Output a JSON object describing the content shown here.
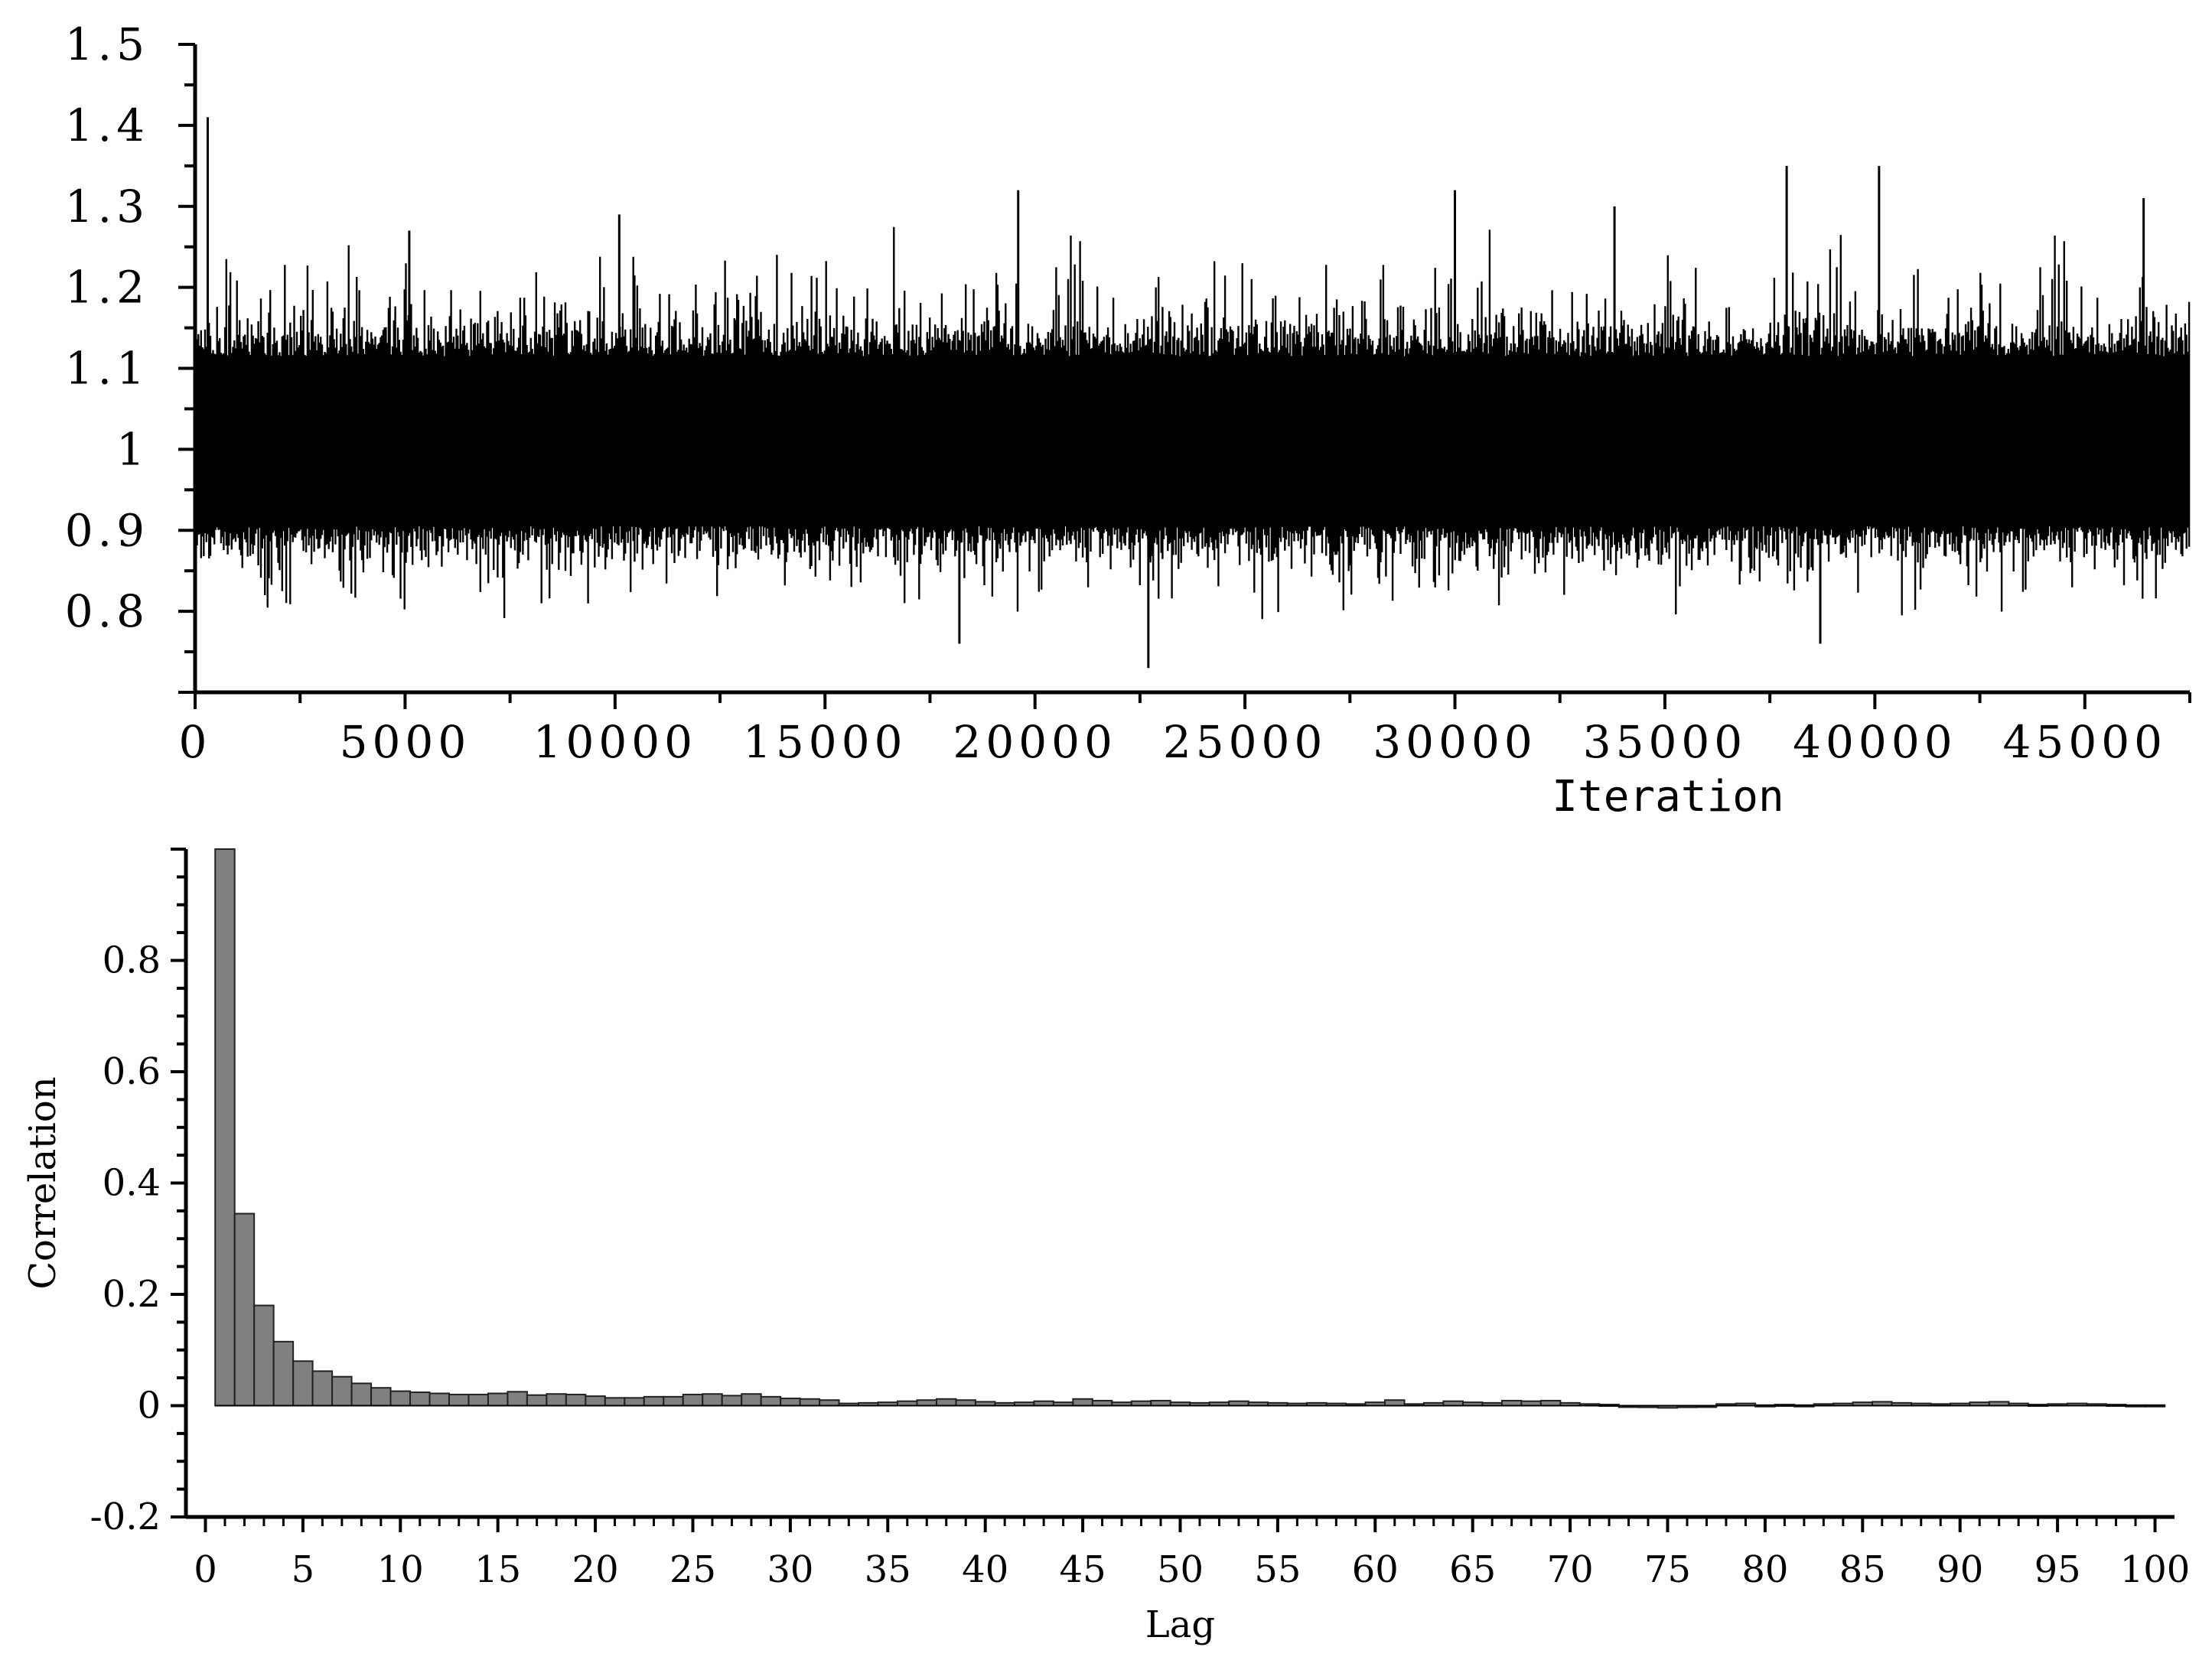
{
  "chart_data": [
    {
      "type": "line",
      "title": "",
      "xlabel": "Iteration",
      "ylabel": "",
      "xlim": [
        0,
        47500
      ],
      "ylim": [
        0.7,
        1.5
      ],
      "x_ticks": [
        "0",
        "5000",
        "10000",
        "15000",
        "20000",
        "25000",
        "30000",
        "35000",
        "40000",
        "45000"
      ],
      "y_ticks": [
        "0.8",
        "0.9",
        "1",
        "1.1",
        "1.2",
        "1.3",
        "1.4",
        "1.5"
      ],
      "grid": false,
      "series": [
        {
          "description_values": "dense MCMC trace, ~47500 iterations centred near 1.0, bulk range 0.88-1.14",
          "mean": 1.01,
          "n_iterations": 47500,
          "notable_points": [
            {
              "x": 300,
              "y": 1.41
            },
            {
              "x": 5100,
              "y": 1.27
            },
            {
              "x": 10100,
              "y": 1.29
            },
            {
              "x": 18200,
              "y": 0.76
            },
            {
              "x": 19600,
              "y": 1.32
            },
            {
              "x": 22700,
              "y": 0.73
            },
            {
              "x": 30000,
              "y": 1.32
            },
            {
              "x": 33800,
              "y": 1.3
            },
            {
              "x": 37900,
              "y": 1.35
            },
            {
              "x": 38700,
              "y": 0.76
            },
            {
              "x": 40100,
              "y": 1.35
            },
            {
              "x": 46400,
              "y": 1.31
            }
          ]
        }
      ]
    },
    {
      "type": "bar",
      "title": "",
      "xlabel": "Lag",
      "ylabel": "Correlation",
      "xlim": [
        -1,
        101
      ],
      "ylim": [
        -0.2,
        1.0
      ],
      "x_ticks": [
        "0",
        "5",
        "10",
        "15",
        "20",
        "25",
        "30",
        "35",
        "40",
        "45",
        "50",
        "55",
        "60",
        "65",
        "70",
        "75",
        "80",
        "85",
        "90",
        "95",
        "100"
      ],
      "y_ticks": [
        "-0.2",
        "0",
        "0.2",
        "0.4",
        "0.6",
        "0.8"
      ],
      "grid": false,
      "categories": [
        1,
        2,
        3,
        4,
        5,
        6,
        7,
        8,
        9,
        10,
        11,
        12,
        13,
        14,
        15,
        16,
        17,
        18,
        19,
        20,
        21,
        22,
        23,
        24,
        25,
        26,
        27,
        28,
        29,
        30,
        31,
        32,
        33,
        34,
        35,
        36,
        37,
        38,
        39,
        40,
        41,
        42,
        43,
        44,
        45,
        46,
        47,
        48,
        49,
        50,
        51,
        52,
        53,
        54,
        55,
        56,
        57,
        58,
        59,
        60,
        61,
        62,
        63,
        64,
        65,
        66,
        67,
        68,
        69,
        70,
        71,
        72,
        73,
        74,
        75,
        76,
        77,
        78,
        79,
        80,
        81,
        82,
        83,
        84,
        85,
        86,
        87,
        88,
        89,
        90,
        91,
        92,
        93,
        94,
        95,
        96,
        97,
        98,
        99,
        100
      ],
      "values": [
        1.0,
        0.345,
        0.18,
        0.115,
        0.08,
        0.062,
        0.052,
        0.04,
        0.032,
        0.026,
        0.024,
        0.022,
        0.02,
        0.02,
        0.022,
        0.025,
        0.019,
        0.021,
        0.02,
        0.017,
        0.014,
        0.014,
        0.016,
        0.016,
        0.02,
        0.021,
        0.018,
        0.021,
        0.016,
        0.013,
        0.012,
        0.01,
        0.004,
        0.005,
        0.006,
        0.008,
        0.01,
        0.012,
        0.01,
        0.007,
        0.005,
        0.006,
        0.008,
        0.006,
        0.012,
        0.009,
        0.006,
        0.008,
        0.009,
        0.006,
        0.005,
        0.006,
        0.008,
        0.006,
        0.005,
        0.004,
        0.005,
        0.004,
        0.003,
        0.006,
        0.01,
        0.003,
        0.005,
        0.008,
        0.006,
        0.005,
        0.009,
        0.008,
        0.009,
        0.005,
        0.003,
        0.002,
        0.0,
        -0.003,
        -0.004,
        -0.003,
        -0.002,
        0.003,
        0.004,
        0.001,
        0.002,
        0.001,
        0.003,
        0.004,
        0.006,
        0.007,
        0.005,
        0.004,
        0.003,
        0.004,
        0.006,
        0.007,
        0.004,
        0.002,
        0.003,
        0.004,
        0.003,
        0.002,
        0.001,
        0.001
      ],
      "bar_color": "#808080"
    }
  ]
}
